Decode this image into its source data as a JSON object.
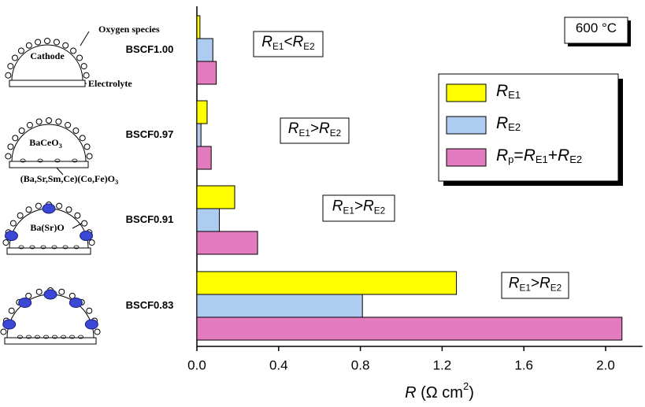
{
  "chart_data": {
    "type": "hbar",
    "categories": [
      "BSCF1.00",
      "BSCF0.97",
      "BSCF0.91",
      "BSCF0.83"
    ],
    "series": [
      {
        "name": "RE1",
        "color": "#ffff00",
        "values": [
          0.015,
          0.05,
          0.185,
          1.27
        ]
      },
      {
        "name": "RE2",
        "color": "#aecbf0",
        "values": [
          0.078,
          0.02,
          0.11,
          0.81
        ]
      },
      {
        "name": "Rp=RE1+RE2",
        "color": "#e27cbf",
        "values": [
          0.095,
          0.07,
          0.297,
          2.08
        ]
      }
    ],
    "xlim": [
      0,
      2.18
    ],
    "xticks": [
      {
        "value": 0,
        "label": "0.0"
      },
      0.4,
      0.8,
      1.2,
      1.6,
      {
        "value": 2,
        "label": "2.0"
      }
    ],
    "x_label": "R (Ω cm2)",
    "annotations": [
      "600 °C",
      "RE1<RE2",
      "RE1>RE2",
      "RE1>RE2",
      "RE1>RE2"
    ]
  },
  "diagram": {
    "labels": [
      "Oxygen species",
      "Cathode",
      "Electrolyte",
      "BaCeO3",
      "(Ba,Sr,Sm,Ce)(Co,Fe)O3",
      "Ba(Sr)O"
    ]
  }
}
